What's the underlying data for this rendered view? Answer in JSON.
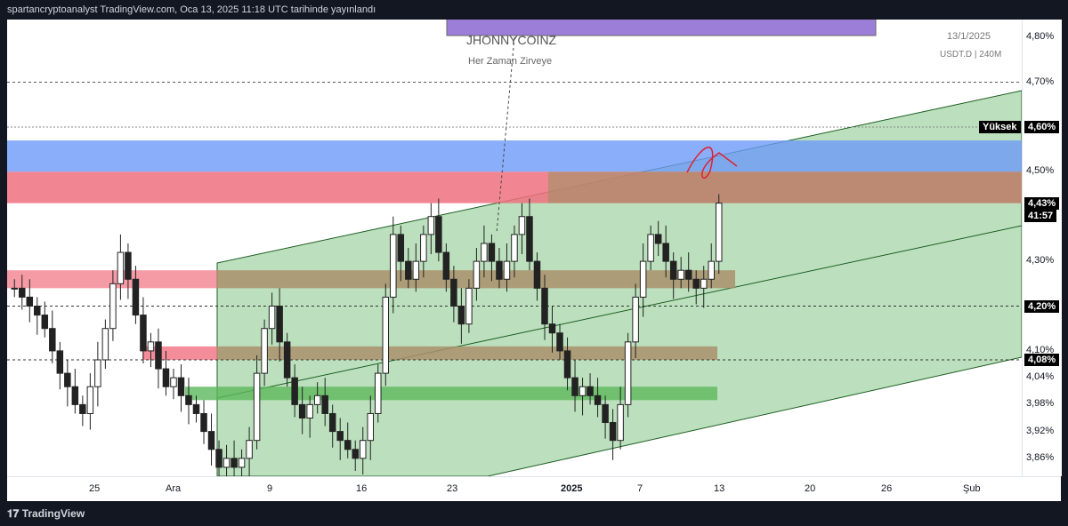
{
  "header": {
    "published_text": "spartancryptoanalyst TradingView.com, Oca 13, 2025 11:18 UTC tarihinde yayınlandı"
  },
  "footer": {
    "brand": "TradingView"
  },
  "overlay": {
    "box_title": "JHONNYCOINZ",
    "box_subtitle": "Her Zaman Zirveye",
    "date": "13/1/2025",
    "symbol": "USDT.D | 240M",
    "colors": {
      "purple": "#9c7ed9",
      "blue": "#6d9af7",
      "red": "#f0707f",
      "green_zone": "#a5d6a7",
      "brown": "#a98f6b",
      "green_box": "#5cb85c"
    }
  },
  "price_tags": {
    "high_label": "Yüksek",
    "high_value": "4,60%",
    "current": "4,43%",
    "countdown": "41:57",
    "level1": "4,20%",
    "level2": "4,08%"
  },
  "chart_data": {
    "type": "candlestick",
    "title": "",
    "ylabel": "",
    "ylim": [
      3.82,
      4.84
    ],
    "y_ticks": [
      "4,80%",
      "4,70%",
      "4,60%",
      "4,50%",
      "4,43%",
      "4,30%",
      "4,20%",
      "4,10%",
      "4,08%",
      "4,04%",
      "3,98%",
      "3,92%",
      "3,86%"
    ],
    "x_ticks": [
      "25",
      "Ara",
      "9",
      "16",
      "23",
      "2025",
      "7",
      "13",
      "20",
      "26",
      "Şub"
    ],
    "close_series": [
      4.24,
      4.22,
      4.2,
      4.18,
      4.15,
      4.1,
      4.05,
      4.02,
      3.98,
      3.96,
      4.02,
      4.08,
      4.15,
      4.25,
      4.32,
      4.26,
      4.18,
      4.1,
      4.12,
      4.06,
      4.02,
      4.04,
      4.0,
      3.98,
      3.96,
      3.92,
      3.88,
      3.84,
      3.86,
      3.84,
      3.86,
      3.9,
      4.05,
      4.15,
      4.2,
      4.12,
      4.04,
      3.98,
      3.95,
      3.98,
      4.0,
      3.96,
      3.92,
      3.9,
      3.88,
      3.86,
      3.9,
      3.96,
      4.05,
      4.22,
      4.36,
      4.3,
      4.26,
      4.3,
      4.36,
      4.4,
      4.32,
      4.26,
      4.2,
      4.16,
      4.24,
      4.3,
      4.34,
      4.3,
      4.26,
      4.3,
      4.36,
      4.4,
      4.3,
      4.24,
      4.16,
      4.14,
      4.1,
      4.04,
      4.0,
      4.02,
      4.0,
      3.98,
      3.94,
      3.9,
      3.98,
      4.12,
      4.22,
      4.3,
      4.36,
      4.34,
      4.3,
      4.26,
      4.28,
      4.26,
      4.24,
      4.26,
      4.3,
      4.43
    ],
    "levels": {
      "high": 4.6,
      "current": 4.43,
      "support": 4.2,
      "minor": 4.08
    },
    "zones": [
      {
        "label": "blue",
        "from": 4.5,
        "to": 4.57
      },
      {
        "label": "red",
        "from": 4.43,
        "to": 4.5
      },
      {
        "label": "red_left",
        "from": 4.24,
        "to": 4.28
      },
      {
        "label": "brown_mid",
        "from": 4.24,
        "to": 4.28
      },
      {
        "label": "brown_low",
        "from": 4.08,
        "to": 4.11
      },
      {
        "label": "green_box",
        "from": 3.99,
        "to": 4.02
      }
    ]
  }
}
